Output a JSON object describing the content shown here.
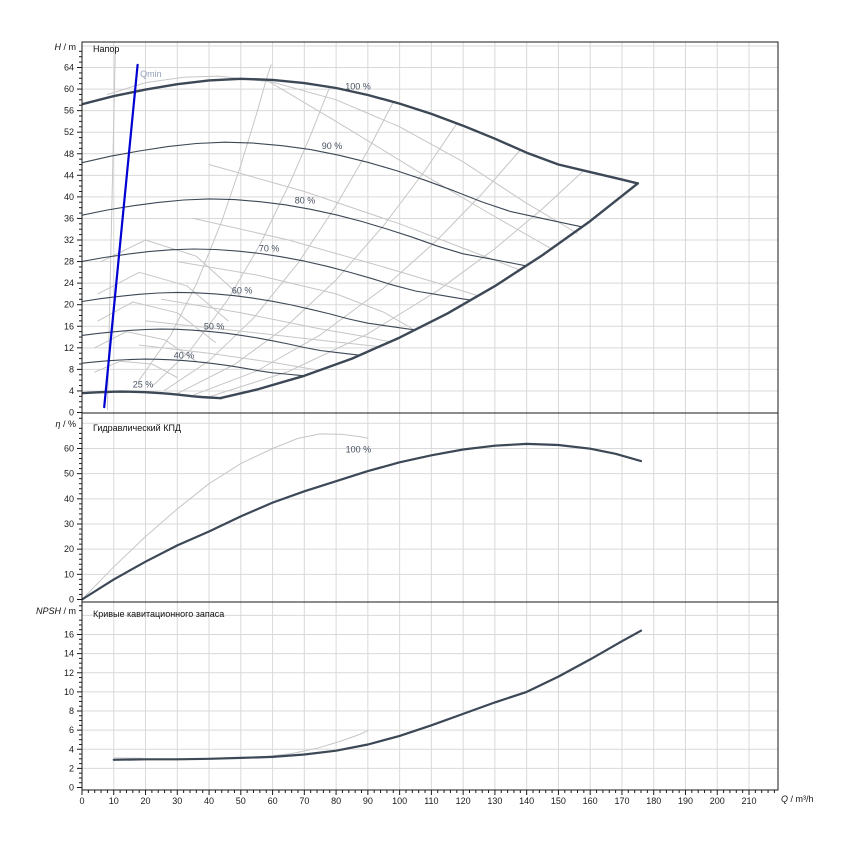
{
  "page": {
    "background": "#ffffff"
  },
  "colors": {
    "curve_dark": "#3d4856",
    "curve_gray": "#c6c6c6",
    "grid": "#d9d9d9",
    "qmin_blue": "#0000d2",
    "axis": "#1a1a1a",
    "tick_text": "#1a1a1a",
    "label_dark": "#46505f",
    "qmin_label": "#92a0b8"
  },
  "x_axis": {
    "symbol": "Q",
    "unit": " / m³/h",
    "tick_start": 0,
    "tick_end": 210,
    "tick_step": 10,
    "minor_step": 2,
    "axis_max": 219
  },
  "chart_data": [
    {
      "id": "head",
      "type": "line",
      "title": "Напор",
      "ylabel_symbol": "H",
      "ylabel_unit": " / m",
      "ylim": [
        0,
        68.7
      ],
      "y_ticks": {
        "start": 0,
        "end": 64,
        "step": 4,
        "minor": 1,
        "axis_max": 68.7
      },
      "speed_percents": [
        100,
        90,
        80,
        70,
        60,
        50,
        40,
        25
      ],
      "base_curve_100": [
        [
          0,
          57.2
        ],
        [
          10,
          58.7
        ],
        [
          20,
          59.9
        ],
        [
          30,
          60.9
        ],
        [
          40,
          61.6
        ],
        [
          50,
          61.9
        ],
        [
          60,
          61.7
        ],
        [
          70,
          61.1
        ],
        [
          80,
          60.2
        ],
        [
          90,
          58.9
        ],
        [
          100,
          57.3
        ],
        [
          110,
          55.4
        ],
        [
          120,
          53.2
        ],
        [
          130,
          50.8
        ],
        [
          140,
          48.2
        ],
        [
          150,
          46.0
        ],
        [
          160,
          44.6
        ],
        [
          170,
          43.2
        ],
        [
          175,
          42.5
        ]
      ],
      "envelope_boundary": [
        [
          43.75,
          2.7
        ],
        [
          55,
          4.25
        ],
        [
          70,
          6.8
        ],
        [
          85,
          10.0
        ],
        [
          100,
          13.9
        ],
        [
          115,
          18.35
        ],
        [
          130,
          23.45
        ],
        [
          145,
          29.2
        ],
        [
          160,
          35.5
        ],
        [
          175,
          42.5
        ]
      ],
      "qmin_line": {
        "label": "Qmin",
        "points": [
          [
            7,
            1
          ],
          [
            17.5,
            64.5
          ]
        ],
        "label_q": 18.3,
        "label_h": 62.8
      },
      "speed_labels": [
        {
          "text": "100 %",
          "q": 86.9,
          "h": 60.5
        },
        {
          "text": "90 %",
          "q": 78.7,
          "h": 49.4
        },
        {
          "text": "80 %",
          "q": 70.2,
          "h": 39.3
        },
        {
          "text": "70 %",
          "q": 58.9,
          "h": 30.4
        },
        {
          "text": "60 %",
          "q": 50.4,
          "h": 22.6
        },
        {
          "text": "50 %",
          "q": 41.6,
          "h": 16.0
        },
        {
          "text": "40 %",
          "q": 32.1,
          "h": 10.6
        },
        {
          "text": "25 %",
          "q": 19.2,
          "h": 5.2
        }
      ],
      "iso_efficiency_lines": [
        [
          [
            8,
            0.5
          ],
          [
            10.5,
            68
          ]
        ],
        [
          [
            18,
            6
          ],
          [
            28,
            14.4
          ],
          [
            36,
            23.8
          ],
          [
            44,
            35.5
          ],
          [
            50,
            45.9
          ],
          [
            55,
            55.5
          ],
          [
            58,
            61.7
          ],
          [
            59.5,
            64.5
          ]
        ],
        [
          [
            22,
            4.8
          ],
          [
            34,
            11.5
          ],
          [
            46,
            21
          ],
          [
            56,
            31.1
          ],
          [
            66,
            43.3
          ],
          [
            72,
            51.5
          ],
          [
            78,
            60.4
          ]
        ],
        [
          [
            26,
            4.1
          ],
          [
            40,
            9.6
          ],
          [
            54,
            17.5
          ],
          [
            68,
            27.7
          ],
          [
            80,
            38.4
          ],
          [
            90,
            48.6
          ],
          [
            98,
            57.6
          ]
        ],
        [
          [
            30,
            3.5
          ],
          [
            48,
            8.9
          ],
          [
            64,
            15.8
          ],
          [
            80,
            24.6
          ],
          [
            95,
            34.7
          ],
          [
            108,
            44.9
          ],
          [
            118,
            53.6
          ]
        ],
        [
          [
            34,
            3.0
          ],
          [
            55,
            7.7
          ],
          [
            75,
            14.4
          ],
          [
            95,
            23.1
          ],
          [
            112,
            32.1
          ],
          [
            126,
            40.6
          ],
          [
            138,
            48.7
          ]
        ],
        [
          [
            40,
            2.9
          ],
          [
            65,
            7.6
          ],
          [
            90,
            14.6
          ],
          [
            112,
            22.6
          ],
          [
            130,
            30.4
          ],
          [
            145,
            37.8
          ],
          [
            158,
            44.9
          ]
        ],
        [
          [
            58,
            61.7
          ],
          [
            80,
            54
          ],
          [
            105,
            45
          ],
          [
            128,
            37
          ],
          [
            148,
            30.3
          ]
        ],
        [
          [
            8,
            59
          ],
          [
            20,
            61.2
          ],
          [
            32,
            62.2
          ],
          [
            43,
            62.4
          ],
          [
            60,
            61.3
          ],
          [
            80,
            58
          ],
          [
            100,
            53
          ],
          [
            120,
            46.5
          ],
          [
            140,
            38.8
          ],
          [
            156,
            33.2
          ]
        ],
        [
          [
            30,
            28
          ],
          [
            55,
            25.5
          ],
          [
            80,
            22
          ],
          [
            95,
            18.6
          ],
          [
            105,
            15.2
          ]
        ],
        [
          [
            25,
            21
          ],
          [
            50,
            18.5
          ],
          [
            75,
            15.5
          ],
          [
            88,
            14.2
          ],
          [
            97,
            13.1
          ]
        ],
        [
          [
            35,
            36
          ],
          [
            65,
            32
          ],
          [
            95,
            27
          ],
          [
            112,
            24
          ],
          [
            125,
            21.6
          ]
        ],
        [
          [
            40,
            46
          ],
          [
            70,
            41
          ],
          [
            100,
            35
          ],
          [
            120,
            30.5
          ],
          [
            138,
            26.4
          ]
        ],
        [
          [
            18,
            12.5
          ],
          [
            40,
            11
          ],
          [
            60,
            9.3
          ],
          [
            75,
            7.8
          ]
        ],
        [
          [
            20,
            17
          ],
          [
            50,
            15.1
          ],
          [
            75,
            13.4
          ],
          [
            94,
            12.2
          ]
        ],
        [
          [
            4,
            7.5
          ],
          [
            12,
            9.5
          ],
          [
            22,
            9
          ],
          [
            30,
            6.5
          ]
        ],
        [
          [
            4,
            12
          ],
          [
            14,
            15
          ],
          [
            26,
            13.5
          ],
          [
            36,
            9.5
          ]
        ],
        [
          [
            5,
            17
          ],
          [
            16,
            20.5
          ],
          [
            30,
            18.5
          ],
          [
            42,
            13
          ]
        ],
        [
          [
            5,
            22
          ],
          [
            18,
            26
          ],
          [
            33,
            23.5
          ],
          [
            46,
            17
          ]
        ],
        [
          [
            6,
            28
          ],
          [
            20,
            32
          ],
          [
            36,
            29
          ],
          [
            50,
            21.5
          ]
        ]
      ]
    },
    {
      "id": "efficiency",
      "type": "line",
      "title": "Гидравлический КПД",
      "ylabel_symbol": "η",
      "ylabel_unit": " / %",
      "ylim": [
        0,
        74
      ],
      "y_ticks": {
        "start": 0,
        "end": 60,
        "step": 10,
        "minor": 2,
        "axis_max": 73
      },
      "series": [
        {
          "name": "efficiency-reference-gray",
          "color": "gray",
          "width": 1,
          "points": [
            [
              0,
              0
            ],
            [
              10,
              13
            ],
            [
              20,
              25
            ],
            [
              30,
              36
            ],
            [
              40,
              46
            ],
            [
              50,
              54
            ],
            [
              60,
              60
            ],
            [
              68,
              64
            ],
            [
              75,
              65.8
            ],
            [
              82,
              65.6
            ],
            [
              88,
              64.6
            ],
            [
              90,
              64.1
            ]
          ]
        },
        {
          "name": "efficiency-100-speed",
          "color": "dark",
          "width": 2.2,
          "points": [
            [
              0,
              0
            ],
            [
              10,
              8
            ],
            [
              20,
              15
            ],
            [
              30,
              21.5
            ],
            [
              40,
              27
            ],
            [
              50,
              33
            ],
            [
              60,
              38.5
            ],
            [
              70,
              43
            ],
            [
              80,
              47
            ],
            [
              90,
              51
            ],
            [
              100,
              54.5
            ],
            [
              110,
              57.3
            ],
            [
              120,
              59.6
            ],
            [
              130,
              61.1
            ],
            [
              140,
              61.8
            ],
            [
              150,
              61.4
            ],
            [
              160,
              59.9
            ],
            [
              168,
              57.9
            ],
            [
              176,
              55
            ]
          ]
        }
      ],
      "labels": [
        {
          "text": "100 %",
          "q": 87,
          "v": 59.5
        }
      ]
    },
    {
      "id": "npsh",
      "type": "line",
      "title": "Кривые кавитационного запаса",
      "ylabel_symbol": "NPSH",
      "ylabel_unit": " / m",
      "ylim": [
        0,
        19.4
      ],
      "y_ticks": {
        "start": 0,
        "end": 16,
        "step": 2,
        "minor": 0.5,
        "axis_max": 19
      },
      "series": [
        {
          "name": "npsh-reference-gray-stub",
          "color": "gray",
          "width": 1,
          "points": [
            [
              10,
              3.1
            ],
            [
              19,
              3.05
            ]
          ]
        },
        {
          "name": "npsh-reference-gray",
          "color": "gray",
          "width": 1,
          "points": [
            [
              48,
              3.05
            ],
            [
              58,
              3.25
            ],
            [
              66,
              3.55
            ],
            [
              74,
              4.1
            ],
            [
              81,
              4.8
            ],
            [
              87,
              5.5
            ],
            [
              90,
              5.95
            ]
          ]
        },
        {
          "name": "npsh-curve",
          "color": "dark",
          "width": 2.2,
          "points": [
            [
              10,
              2.9
            ],
            [
              20,
              2.95
            ],
            [
              30,
              2.95
            ],
            [
              40,
              3.0
            ],
            [
              50,
              3.1
            ],
            [
              60,
              3.2
            ],
            [
              70,
              3.45
            ],
            [
              80,
              3.85
            ],
            [
              90,
              4.5
            ],
            [
              100,
              5.4
            ],
            [
              110,
              6.5
            ],
            [
              120,
              7.7
            ],
            [
              130,
              8.9
            ],
            [
              140,
              10.0
            ],
            [
              150,
              11.6
            ],
            [
              160,
              13.4
            ],
            [
              170,
              15.3
            ],
            [
              176,
              16.4
            ]
          ]
        }
      ],
      "labels": []
    }
  ]
}
